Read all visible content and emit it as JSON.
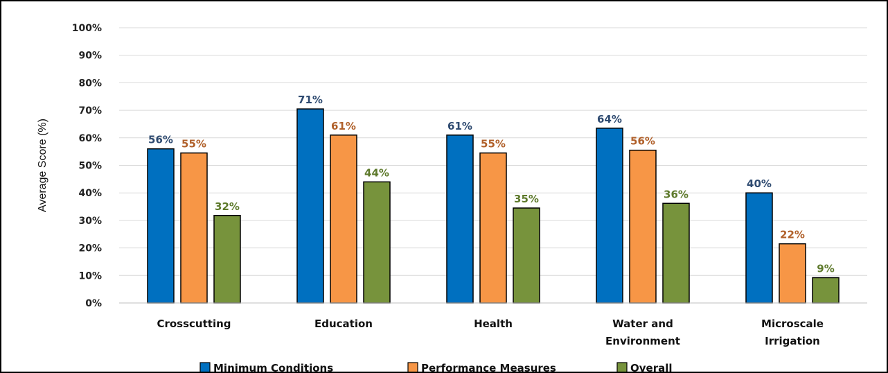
{
  "chart_data": {
    "type": "bar",
    "ylabel": "Average Score (%)",
    "xlabel": "",
    "ylim": [
      0,
      100
    ],
    "yticks": [
      "0%",
      "10%",
      "20%",
      "30%",
      "40%",
      "50%",
      "60%",
      "70%",
      "80%",
      "90%",
      "100%"
    ],
    "grid": true,
    "legend_position": "bottom",
    "categories": [
      [
        "Crosscutting"
      ],
      [
        "Education"
      ],
      [
        "Health"
      ],
      [
        "Water and",
        "Environment"
      ],
      [
        "Microscale",
        "Irrigation"
      ]
    ],
    "series": [
      {
        "name": "Minimum Conditions",
        "values": [
          56,
          70.5,
          61,
          63.5,
          40
        ],
        "labels": [
          "56%",
          "71%",
          "61%",
          "64%",
          "40%"
        ],
        "color": "#0070c0",
        "label_color": "#2e4a70"
      },
      {
        "name": "Performance Measures",
        "values": [
          54.5,
          61,
          54.5,
          55.5,
          21.5
        ],
        "labels": [
          "55%",
          "61%",
          "55%",
          "56%",
          "22%"
        ],
        "color": "#f79646",
        "label_color": "#b0602a"
      },
      {
        "name": "Overall",
        "values": [
          31.8,
          44,
          34.5,
          36.2,
          9.2
        ],
        "labels": [
          "32%",
          "44%",
          "35%",
          "36%",
          "9%"
        ],
        "color": "#77933c",
        "label_color": "#5e7a2c"
      }
    ]
  }
}
